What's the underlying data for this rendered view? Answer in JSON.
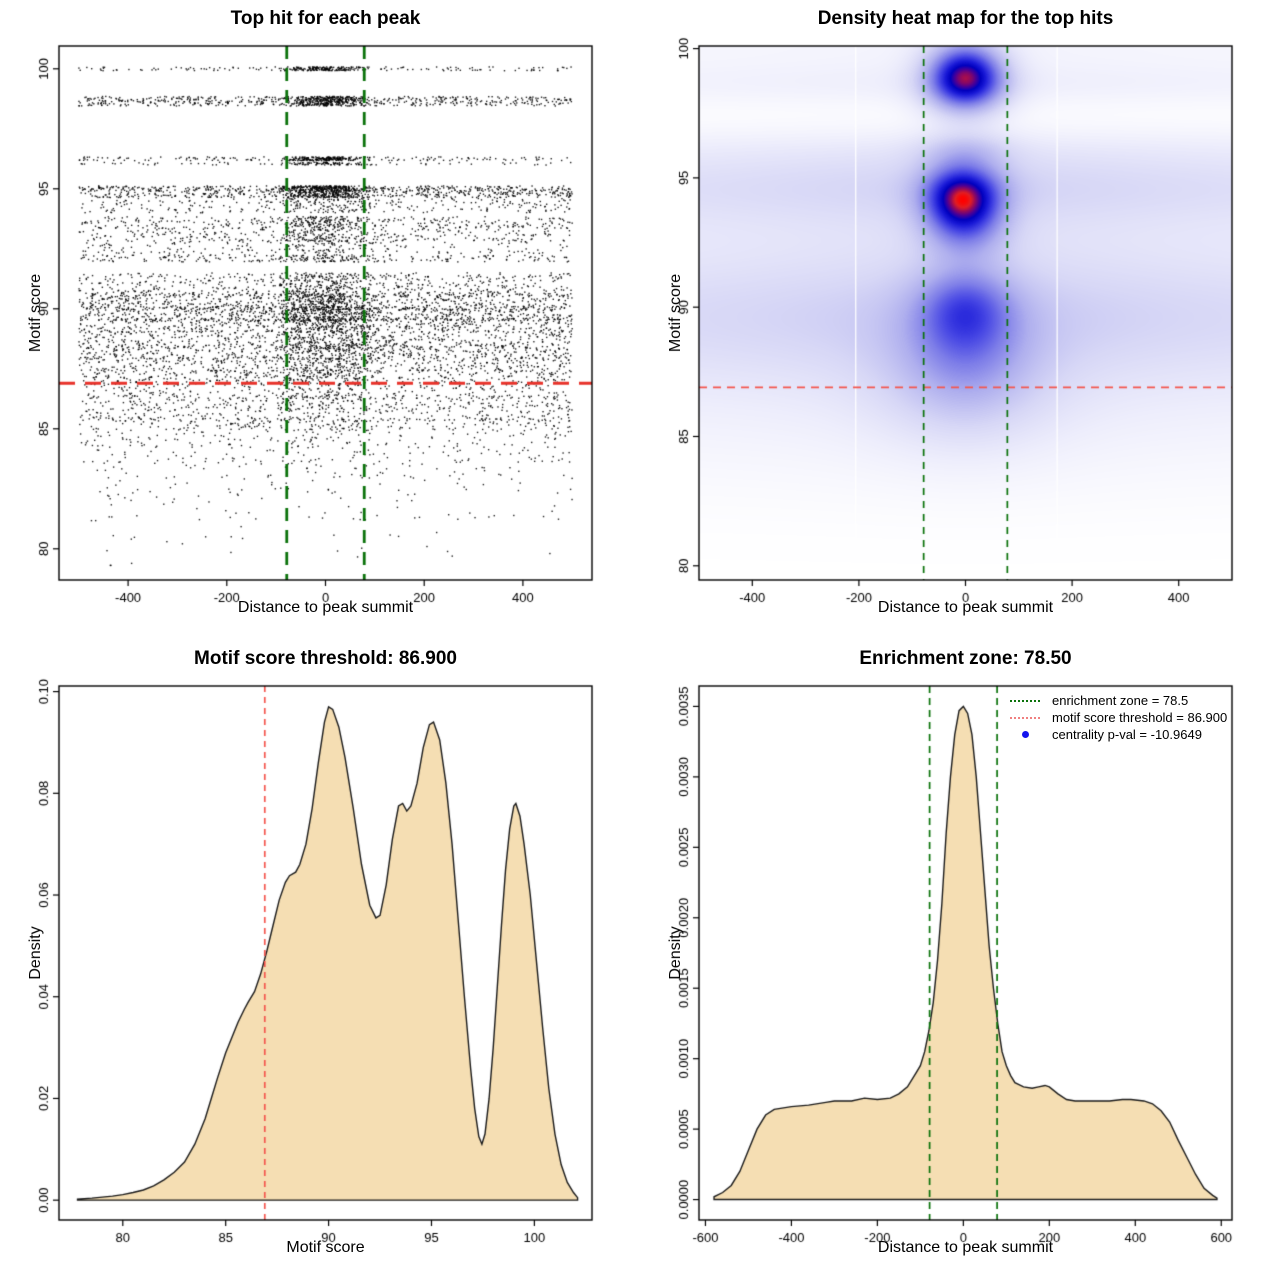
{
  "colors": {
    "scatter_point": "#000000",
    "red_line_strong": "#e8322a",
    "red_line_soft": "#f4564e",
    "red_line_legend": "#f08080",
    "green_line": "#0a720a",
    "blue_dot": "#1414ee",
    "area_fill": "#f5deb3",
    "area_stroke": "#1a1a1a",
    "frame": "#000000"
  },
  "chart_data": [
    {
      "type": "scatter",
      "title": "Top hit for each peak",
      "xlabel": "Distance to peak summit",
      "ylabel": "Motif score",
      "xlim": [
        -540,
        540
      ],
      "ylim": [
        78.7,
        100.95
      ],
      "xticks": {
        "v": [
          -400,
          -200,
          0,
          200,
          400
        ],
        "labels": [
          "-400",
          "-200",
          "0",
          "200",
          "400"
        ]
      },
      "yticks": {
        "v": [
          80,
          85,
          90,
          95,
          100
        ],
        "labels": [
          "80",
          "85",
          "90",
          "95",
          "100"
        ]
      },
      "hline": {
        "y": 86.9,
        "lw": 3,
        "dash": [
          16,
          10
        ]
      },
      "vlines": {
        "x": [
          -78.5,
          78.5
        ],
        "lw": 2.8,
        "dash": [
          13,
          9
        ]
      },
      "seed": 123457,
      "point_size": 1.4,
      "bands": [
        [
          100.0,
          0.08,
          130,
          170,
          40
        ],
        [
          98.75,
          0.1,
          280,
          180,
          45
        ],
        [
          98.55,
          0.1,
          260,
          160,
          45
        ],
        [
          96.25,
          0.08,
          150,
          200,
          40
        ],
        [
          96.05,
          0.06,
          60,
          80,
          40
        ],
        [
          95.0,
          0.12,
          420,
          280,
          50
        ],
        [
          94.75,
          0.12,
          330,
          180,
          50
        ],
        [
          94.3,
          0.3,
          250,
          80,
          60
        ],
        [
          93.6,
          0.25,
          280,
          120,
          55
        ],
        [
          93.1,
          0.3,
          260,
          100,
          55
        ],
        [
          92.6,
          0.3,
          180,
          70,
          60
        ],
        [
          92.1,
          0.15,
          200,
          80,
          55
        ],
        [
          91.0,
          0.5,
          550,
          180,
          60
        ],
        [
          90.3,
          0.35,
          600,
          200,
          60
        ],
        [
          89.8,
          0.3,
          650,
          220,
          60
        ],
        [
          89.3,
          0.3,
          500,
          150,
          60
        ],
        [
          88.7,
          0.35,
          450,
          120,
          65
        ],
        [
          88.2,
          0.3,
          420,
          100,
          65
        ],
        [
          87.7,
          0.3,
          380,
          80,
          70
        ],
        [
          87.2,
          0.25,
          330,
          60,
          70
        ],
        [
          86.6,
          0.35,
          280,
          50,
          80
        ],
        [
          86.1,
          0.3,
          240,
          40,
          80
        ],
        [
          85.6,
          0.3,
          220,
          30,
          80
        ],
        [
          85.2,
          0.25,
          180,
          25,
          80
        ],
        [
          84.6,
          0.4,
          130,
          15,
          90
        ],
        [
          84.0,
          0.4,
          100,
          10,
          90
        ],
        [
          83.3,
          0.4,
          70,
          8,
          90
        ],
        [
          82.5,
          0.5,
          50,
          5,
          100
        ],
        [
          81.7,
          0.5,
          30,
          3,
          100
        ],
        [
          80.9,
          0.5,
          18,
          2,
          100
        ],
        [
          80.2,
          0.4,
          10,
          1,
          100
        ],
        [
          79.6,
          0.3,
          6,
          1,
          100
        ]
      ]
    },
    {
      "type": "heatmap",
      "title": "Density heat map for the top hits",
      "xlabel": "Distance to peak summit",
      "ylabel": "Motif score",
      "xlim": [
        -500,
        500
      ],
      "ylim": [
        79.45,
        100.1
      ],
      "xticks": {
        "v": [
          -400,
          -200,
          0,
          200,
          400
        ],
        "labels": [
          "-400",
          "-200",
          "0",
          "200",
          "400"
        ]
      },
      "yticks": {
        "v": [
          80,
          85,
          90,
          95,
          100
        ],
        "labels": [
          "80",
          "85",
          "90",
          "95",
          "100"
        ]
      },
      "hline": {
        "y": 86.9,
        "lw": 1.6,
        "dash": [
          8,
          6
        ]
      },
      "vlines": {
        "x": [
          -78.5,
          78.5
        ],
        "lw": 1.7,
        "dash": [
          7,
          6
        ]
      },
      "white_lines": [
        -206,
        172
      ],
      "gaussians": [
        {
          "x": 0,
          "y": 99.1,
          "sx": 50,
          "sy": 0.85,
          "a": 1.0
        },
        {
          "x": 0,
          "y": 98.3,
          "sx": 55,
          "sy": 0.8,
          "a": 0.45
        },
        {
          "x": -5,
          "y": 94.6,
          "sx": 52,
          "sy": 0.8,
          "a": 0.62
        },
        {
          "x": -5,
          "y": 93.9,
          "sx": 50,
          "sy": 0.8,
          "a": 0.6
        },
        {
          "x": 0,
          "y": 92.9,
          "sx": 55,
          "sy": 0.8,
          "a": 0.35
        },
        {
          "x": 0,
          "y": 90.1,
          "sx": 62,
          "sy": 1.1,
          "a": 0.42
        },
        {
          "x": 0,
          "y": 88.5,
          "sx": 80,
          "sy": 1.6,
          "a": 0.3
        },
        {
          "x": 0,
          "y": 96.1,
          "sx": 60,
          "sy": 0.5,
          "a": 0.22
        },
        {
          "x": 0,
          "y": 86.9,
          "sx": 120,
          "sy": 1.8,
          "a": 0.2
        }
      ],
      "bands": [
        {
          "y": 94.9,
          "sy": 1.0,
          "a": 0.22
        },
        {
          "y": 93.6,
          "sy": 1.3,
          "a": 0.11
        },
        {
          "y": 89.9,
          "sy": 1.7,
          "a": 0.21
        },
        {
          "y": 88.0,
          "sy": 2.3,
          "a": 0.15
        },
        {
          "y": 91.6,
          "sy": 3.2,
          "a": 0.1
        },
        {
          "y": 98.6,
          "sy": 0.6,
          "a": 0.11
        },
        {
          "y": 100.2,
          "sy": 1.0,
          "a": 0.1
        },
        {
          "y": 96.2,
          "sy": 0.6,
          "a": 0.06
        },
        {
          "y": 85.3,
          "sy": 1.8,
          "a": 0.05
        },
        {
          "y": 83.0,
          "sy": 1.5,
          "a": 0.02
        }
      ],
      "band_profile": {
        "floor": 0.73,
        "amp": 0.27,
        "sigma": 300
      },
      "colormap": [
        [
          0.0,
          255,
          255,
          255
        ],
        [
          0.1,
          238,
          238,
          252
        ],
        [
          0.22,
          215,
          215,
          246
        ],
        [
          0.38,
          175,
          175,
          238
        ],
        [
          0.52,
          125,
          125,
          232
        ],
        [
          0.64,
          70,
          70,
          228
        ],
        [
          0.74,
          25,
          25,
          215
        ],
        [
          0.82,
          0,
          0,
          190
        ],
        [
          0.88,
          75,
          0,
          150
        ],
        [
          0.93,
          150,
          10,
          90
        ],
        [
          0.97,
          225,
          30,
          35
        ],
        [
          1.0,
          255,
          0,
          0
        ]
      ]
    },
    {
      "type": "area",
      "title": "Motif score threshold: 86.900",
      "xlabel": "Motif score",
      "ylabel": "Density",
      "xlim": [
        76.9,
        102.8
      ],
      "ylim": [
        -0.0039,
        0.1011
      ],
      "xticks": {
        "v": [
          80,
          85,
          90,
          95,
          100
        ],
        "labels": [
          "80",
          "85",
          "90",
          "95",
          "100"
        ]
      },
      "yticks": {
        "v": [
          0.0,
          0.02,
          0.04,
          0.06,
          0.08,
          0.1
        ],
        "labels": [
          "0.00",
          "0.02",
          "0.04",
          "0.06",
          "0.08",
          "0.10"
        ]
      },
      "vline_red": {
        "x": 86.9,
        "lw": 1.7,
        "dash": [
          6,
          5
        ]
      },
      "points": [
        [
          77.8,
          0.0002
        ],
        [
          78.5,
          0.0004
        ],
        [
          79.0,
          0.0006
        ],
        [
          79.5,
          0.0008
        ],
        [
          80.0,
          0.0011
        ],
        [
          80.5,
          0.0015
        ],
        [
          81.0,
          0.002
        ],
        [
          81.5,
          0.0028
        ],
        [
          82.0,
          0.004
        ],
        [
          82.5,
          0.0055
        ],
        [
          83.0,
          0.0075
        ],
        [
          83.5,
          0.011
        ],
        [
          84.0,
          0.016
        ],
        [
          84.3,
          0.02
        ],
        [
          84.6,
          0.024
        ],
        [
          85.0,
          0.029
        ],
        [
          85.3,
          0.032
        ],
        [
          85.6,
          0.035
        ],
        [
          85.9,
          0.0375
        ],
        [
          86.1,
          0.039
        ],
        [
          86.4,
          0.041
        ],
        [
          86.7,
          0.0445
        ],
        [
          87.0,
          0.049
        ],
        [
          87.3,
          0.054
        ],
        [
          87.6,
          0.059
        ],
        [
          87.9,
          0.0625
        ],
        [
          88.1,
          0.0638
        ],
        [
          88.4,
          0.0645
        ],
        [
          88.6,
          0.066
        ],
        [
          88.9,
          0.07
        ],
        [
          89.2,
          0.077
        ],
        [
          89.5,
          0.086
        ],
        [
          89.8,
          0.094
        ],
        [
          90.0,
          0.097
        ],
        [
          90.2,
          0.0965
        ],
        [
          90.5,
          0.093
        ],
        [
          90.8,
          0.087
        ],
        [
          91.2,
          0.077
        ],
        [
          91.6,
          0.066
        ],
        [
          92.0,
          0.058
        ],
        [
          92.3,
          0.0555
        ],
        [
          92.5,
          0.056
        ],
        [
          92.8,
          0.062
        ],
        [
          93.1,
          0.071
        ],
        [
          93.4,
          0.0775
        ],
        [
          93.6,
          0.078
        ],
        [
          93.8,
          0.0765
        ],
        [
          94.0,
          0.0775
        ],
        [
          94.3,
          0.082
        ],
        [
          94.6,
          0.089
        ],
        [
          94.9,
          0.0935
        ],
        [
          95.1,
          0.094
        ],
        [
          95.4,
          0.0905
        ],
        [
          95.7,
          0.082
        ],
        [
          96.0,
          0.07
        ],
        [
          96.3,
          0.055
        ],
        [
          96.6,
          0.04
        ],
        [
          96.9,
          0.026
        ],
        [
          97.1,
          0.018
        ],
        [
          97.3,
          0.0125
        ],
        [
          97.45,
          0.011
        ],
        [
          97.6,
          0.013
        ],
        [
          97.8,
          0.02
        ],
        [
          98.0,
          0.03
        ],
        [
          98.2,
          0.042
        ],
        [
          98.4,
          0.054
        ],
        [
          98.6,
          0.065
        ],
        [
          98.8,
          0.073
        ],
        [
          99.0,
          0.0775
        ],
        [
          99.1,
          0.078
        ],
        [
          99.3,
          0.0755
        ],
        [
          99.5,
          0.07
        ],
        [
          99.8,
          0.06
        ],
        [
          100.1,
          0.047
        ],
        [
          100.4,
          0.034
        ],
        [
          100.7,
          0.022
        ],
        [
          101.0,
          0.013
        ],
        [
          101.3,
          0.007
        ],
        [
          101.6,
          0.0035
        ],
        [
          101.9,
          0.0015
        ],
        [
          102.1,
          0.0005
        ]
      ]
    },
    {
      "type": "area",
      "title": "Enrichment zone: 78.50",
      "xlabel": "Distance to peak summit",
      "ylabel": "Density",
      "xlim": [
        -615,
        625
      ],
      "ylim": [
        -0.000145,
        0.003645
      ],
      "xticks": {
        "v": [
          -600,
          -400,
          -200,
          0,
          200,
          400,
          600
        ],
        "labels": [
          "-600",
          "-400",
          "-200",
          "0",
          "200",
          "400",
          "600"
        ]
      },
      "yticks": {
        "v": [
          0.0,
          0.0005,
          0.001,
          0.0015,
          0.002,
          0.0025,
          0.003,
          0.0035
        ],
        "labels": [
          "0.0000",
          "0.0005",
          "0.0010",
          "0.0015",
          "0.0020",
          "0.0025",
          "0.0030",
          "0.0035"
        ]
      },
      "vlines_green": {
        "x": [
          -78.5,
          78.5
        ],
        "lw": 1.7,
        "dash": [
          7,
          5
        ]
      },
      "points": [
        [
          -580,
          2e-05
        ],
        [
          -560,
          5e-05
        ],
        [
          -540,
          0.0001
        ],
        [
          -520,
          0.0002
        ],
        [
          -500,
          0.00035
        ],
        [
          -480,
          0.0005
        ],
        [
          -460,
          0.0006
        ],
        [
          -440,
          0.00064
        ],
        [
          -400,
          0.00066
        ],
        [
          -360,
          0.00067
        ],
        [
          -320,
          0.00069
        ],
        [
          -300,
          0.0007
        ],
        [
          -260,
          0.0007
        ],
        [
          -230,
          0.00072
        ],
        [
          -200,
          0.00071
        ],
        [
          -170,
          0.00072
        ],
        [
          -150,
          0.00075
        ],
        [
          -130,
          0.0008
        ],
        [
          -110,
          0.0009
        ],
        [
          -100,
          0.00095
        ],
        [
          -90,
          0.00105
        ],
        [
          -80,
          0.0012
        ],
        [
          -70,
          0.0014
        ],
        [
          -60,
          0.0017
        ],
        [
          -50,
          0.0021
        ],
        [
          -40,
          0.0026
        ],
        [
          -30,
          0.003
        ],
        [
          -20,
          0.0033
        ],
        [
          -10,
          0.00347
        ],
        [
          0,
          0.0035
        ],
        [
          10,
          0.00345
        ],
        [
          20,
          0.0033
        ],
        [
          30,
          0.003
        ],
        [
          40,
          0.0026
        ],
        [
          50,
          0.0022
        ],
        [
          60,
          0.0018
        ],
        [
          70,
          0.0015
        ],
        [
          80,
          0.00125
        ],
        [
          90,
          0.00105
        ],
        [
          100,
          0.00095
        ],
        [
          110,
          0.00088
        ],
        [
          120,
          0.00083
        ],
        [
          140,
          0.0008
        ],
        [
          160,
          0.00079
        ],
        [
          175,
          0.0008
        ],
        [
          190,
          0.00081
        ],
        [
          200,
          0.0008
        ],
        [
          220,
          0.00075
        ],
        [
          240,
          0.00071
        ],
        [
          260,
          0.0007
        ],
        [
          300,
          0.0007
        ],
        [
          340,
          0.0007
        ],
        [
          370,
          0.00071
        ],
        [
          390,
          0.00071
        ],
        [
          420,
          0.0007
        ],
        [
          440,
          0.00068
        ],
        [
          460,
          0.00063
        ],
        [
          480,
          0.00055
        ],
        [
          500,
          0.00042
        ],
        [
          520,
          0.0003
        ],
        [
          540,
          0.00018
        ],
        [
          560,
          8e-05
        ],
        [
          580,
          3e-05
        ],
        [
          590,
          1e-05
        ]
      ],
      "legend": {
        "items": [
          {
            "label": "enrichment zone = 78.5",
            "swatch": "green-dotted"
          },
          {
            "label": "motif score threshold = 86.900",
            "swatch": "red-dotted"
          },
          {
            "label": "centrality p-val = -10.9649",
            "swatch": "blue-dot"
          }
        ]
      }
    }
  ]
}
